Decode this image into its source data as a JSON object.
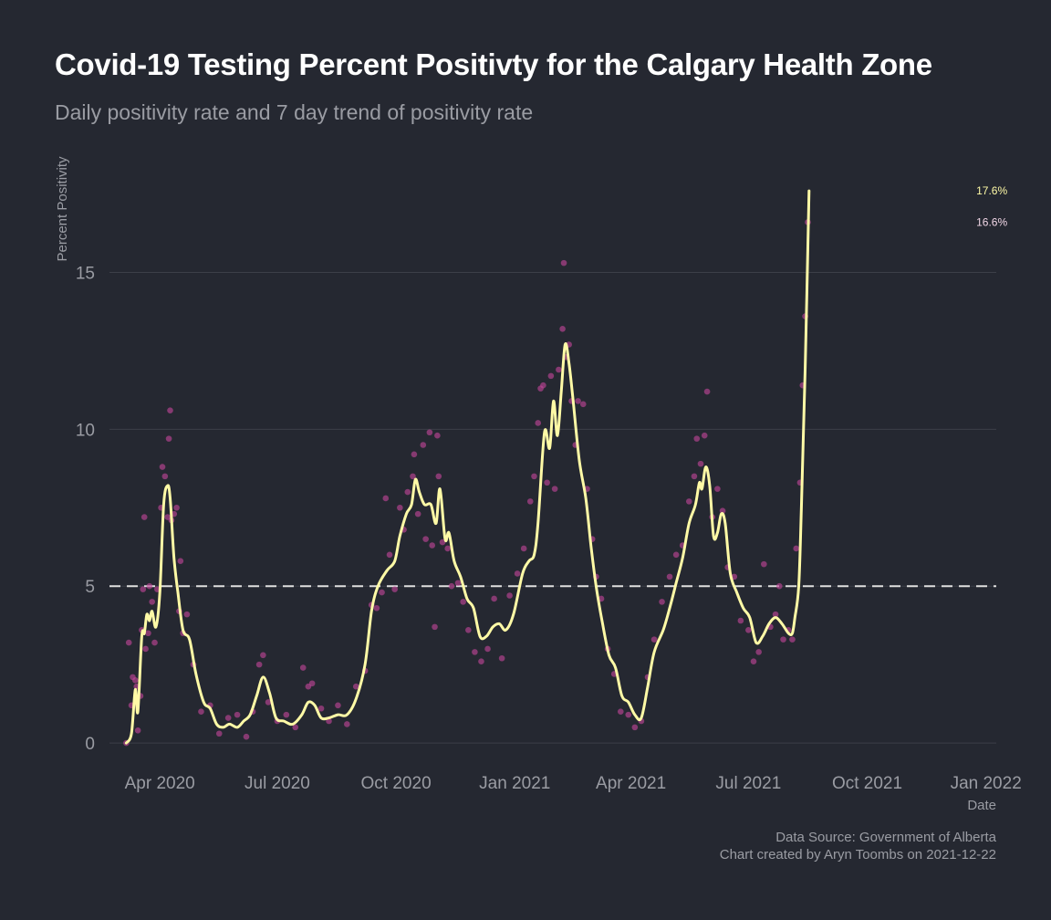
{
  "chart_data": {
    "type": "scatter",
    "title": "Covid-19 Testing Percent Positivty for the Calgary Health Zone",
    "subtitle": "Daily positivity rate and 7 day trend of positivity rate",
    "xlabel": "Date",
    "ylabel": "Percent Positivity",
    "x_ticks": [
      {
        "date": "2020-04-01",
        "label": "Apr 2020"
      },
      {
        "date": "2020-07-01",
        "label": "Jul 2020"
      },
      {
        "date": "2020-10-01",
        "label": "Oct 2020"
      },
      {
        "date": "2021-01-01",
        "label": "Jan 2021"
      },
      {
        "date": "2021-04-01",
        "label": "Apr 2021"
      },
      {
        "date": "2021-07-01",
        "label": "Jul 2021"
      },
      {
        "date": "2021-10-01",
        "label": "Oct 2021"
      },
      {
        "date": "2022-01-01",
        "label": "Jan 2022"
      }
    ],
    "y_ticks": [
      0,
      5,
      10,
      15
    ],
    "xlim": [
      "2020-02-22",
      "2022-01-09"
    ],
    "ylim": [
      -0.9,
      18.3
    ],
    "grid": "horizontal",
    "reference_line": {
      "y": 5,
      "style": "dashed",
      "color": "#e0e0e0"
    },
    "colors": {
      "points": "#c2459a",
      "trend": "#fffaa6",
      "background": "#252831"
    },
    "series": [
      {
        "kind": "7-day trend",
        "style": "line",
        "points": [
          [
            "2020-03-06",
            0
          ],
          [
            "2020-03-10",
            0.3
          ],
          [
            "2020-03-13",
            1.7
          ],
          [
            "2020-03-15",
            1.0
          ],
          [
            "2020-03-18",
            3.4
          ],
          [
            "2020-03-20",
            3.5
          ],
          [
            "2020-03-22",
            4.1
          ],
          [
            "2020-03-24",
            3.9
          ],
          [
            "2020-03-26",
            4.2
          ],
          [
            "2020-03-29",
            3.7
          ],
          [
            "2020-04-01",
            4.8
          ],
          [
            "2020-04-04",
            7.6
          ],
          [
            "2020-04-07",
            8.2
          ],
          [
            "2020-04-09",
            7.8
          ],
          [
            "2020-04-12",
            5.9
          ],
          [
            "2020-04-15",
            4.8
          ],
          [
            "2020-04-19",
            3.6
          ],
          [
            "2020-04-24",
            3.3
          ],
          [
            "2020-04-29",
            2.2
          ],
          [
            "2020-05-05",
            1.3
          ],
          [
            "2020-05-10",
            1.1
          ],
          [
            "2020-05-15",
            0.6
          ],
          [
            "2020-05-20",
            0.5
          ],
          [
            "2020-05-25",
            0.6
          ],
          [
            "2020-05-31",
            0.5
          ],
          [
            "2020-06-05",
            0.7
          ],
          [
            "2020-06-10",
            0.9
          ],
          [
            "2020-06-15",
            1.5
          ],
          [
            "2020-06-20",
            2.1
          ],
          [
            "2020-06-25",
            1.6
          ],
          [
            "2020-06-30",
            0.8
          ],
          [
            "2020-07-06",
            0.7
          ],
          [
            "2020-07-13",
            0.6
          ],
          [
            "2020-07-20",
            0.9
          ],
          [
            "2020-07-25",
            1.3
          ],
          [
            "2020-07-30",
            1.2
          ],
          [
            "2020-08-04",
            0.8
          ],
          [
            "2020-08-10",
            0.8
          ],
          [
            "2020-08-17",
            0.9
          ],
          [
            "2020-08-24",
            0.9
          ],
          [
            "2020-08-31",
            1.4
          ],
          [
            "2020-09-07",
            2.5
          ],
          [
            "2020-09-12",
            4.2
          ],
          [
            "2020-09-17",
            5.0
          ],
          [
            "2020-09-24",
            5.5
          ],
          [
            "2020-09-30",
            5.8
          ],
          [
            "2020-10-04",
            6.6
          ],
          [
            "2020-10-09",
            7.3
          ],
          [
            "2020-10-13",
            7.6
          ],
          [
            "2020-10-16",
            8.4
          ],
          [
            "2020-10-19",
            8.0
          ],
          [
            "2020-10-23",
            7.6
          ],
          [
            "2020-10-28",
            7.6
          ],
          [
            "2020-11-01",
            7.0
          ],
          [
            "2020-11-04",
            8.1
          ],
          [
            "2020-11-08",
            6.5
          ],
          [
            "2020-11-11",
            6.7
          ],
          [
            "2020-11-15",
            5.8
          ],
          [
            "2020-11-20",
            5.3
          ],
          [
            "2020-11-25",
            4.6
          ],
          [
            "2020-11-30",
            4.3
          ],
          [
            "2020-12-05",
            3.4
          ],
          [
            "2020-12-10",
            3.4
          ],
          [
            "2020-12-15",
            3.7
          ],
          [
            "2020-12-20",
            3.8
          ],
          [
            "2020-12-25",
            3.6
          ],
          [
            "2020-12-31",
            4.1
          ],
          [
            "2021-01-07",
            5.4
          ],
          [
            "2021-01-12",
            5.8
          ],
          [
            "2021-01-16",
            6.0
          ],
          [
            "2021-01-19",
            7.0
          ],
          [
            "2021-01-24",
            9.9
          ],
          [
            "2021-01-28",
            9.4
          ],
          [
            "2021-01-31",
            10.9
          ],
          [
            "2021-02-03",
            9.8
          ],
          [
            "2021-02-06",
            11.2
          ],
          [
            "2021-02-09",
            12.7
          ],
          [
            "2021-02-12",
            12.1
          ],
          [
            "2021-02-15",
            11.0
          ],
          [
            "2021-02-20",
            9.0
          ],
          [
            "2021-02-25",
            7.8
          ],
          [
            "2021-03-01",
            6.3
          ],
          [
            "2021-03-05",
            5.0
          ],
          [
            "2021-03-10",
            3.8
          ],
          [
            "2021-03-15",
            2.8
          ],
          [
            "2021-03-20",
            2.4
          ],
          [
            "2021-03-25",
            1.5
          ],
          [
            "2021-03-30",
            1.3
          ],
          [
            "2021-04-04",
            0.9
          ],
          [
            "2021-04-09",
            0.8
          ],
          [
            "2021-04-14",
            1.8
          ],
          [
            "2021-04-19",
            2.9
          ],
          [
            "2021-04-26",
            3.6
          ],
          [
            "2021-05-01",
            4.3
          ],
          [
            "2021-05-06",
            5.1
          ],
          [
            "2021-05-11",
            5.9
          ],
          [
            "2021-05-16",
            7.0
          ],
          [
            "2021-05-21",
            7.6
          ],
          [
            "2021-05-24",
            8.3
          ],
          [
            "2021-05-26",
            8.1
          ],
          [
            "2021-05-29",
            8.8
          ],
          [
            "2021-06-01",
            8.2
          ],
          [
            "2021-06-04",
            6.6
          ],
          [
            "2021-06-07",
            6.7
          ],
          [
            "2021-06-10",
            7.3
          ],
          [
            "2021-06-13",
            7.0
          ],
          [
            "2021-06-17",
            5.4
          ],
          [
            "2021-06-22",
            4.8
          ],
          [
            "2021-06-27",
            4.3
          ],
          [
            "2021-07-02",
            4.0
          ],
          [
            "2021-07-07",
            3.2
          ],
          [
            "2021-07-12",
            3.4
          ],
          [
            "2021-07-17",
            3.8
          ],
          [
            "2021-07-22",
            4.0
          ],
          [
            "2021-07-27",
            3.8
          ],
          [
            "2021-08-01",
            3.5
          ],
          [
            "2021-08-04",
            3.5
          ],
          [
            "2021-08-06",
            4.0
          ],
          [
            "2021-08-09",
            5.0
          ],
          [
            "2021-08-11",
            7.5
          ],
          [
            "2021-08-14",
            12.0
          ],
          [
            "2021-08-17",
            17.6
          ]
        ]
      },
      {
        "kind": "daily",
        "style": "points",
        "points": [
          [
            "2020-03-06",
            0
          ],
          [
            "2020-03-08",
            3.2
          ],
          [
            "2020-03-10",
            1.2
          ],
          [
            "2020-03-11",
            2.1
          ],
          [
            "2020-03-13",
            2.0
          ],
          [
            "2020-03-14",
            1.8
          ],
          [
            "2020-03-15",
            0.4
          ],
          [
            "2020-03-17",
            1.5
          ],
          [
            "2020-03-18",
            3.6
          ],
          [
            "2020-03-19",
            4.9
          ],
          [
            "2020-03-20",
            7.2
          ],
          [
            "2020-03-21",
            3.0
          ],
          [
            "2020-03-23",
            3.5
          ],
          [
            "2020-03-24",
            5.0
          ],
          [
            "2020-03-26",
            4.5
          ],
          [
            "2020-03-28",
            3.2
          ],
          [
            "2020-03-30",
            4.9
          ],
          [
            "2020-04-02",
            7.5
          ],
          [
            "2020-04-03",
            8.8
          ],
          [
            "2020-04-05",
            8.5
          ],
          [
            "2020-04-07",
            7.2
          ],
          [
            "2020-04-08",
            9.7
          ],
          [
            "2020-04-09",
            10.6
          ],
          [
            "2020-04-10",
            7.1
          ],
          [
            "2020-04-12",
            7.3
          ],
          [
            "2020-04-14",
            7.5
          ],
          [
            "2020-04-16",
            4.2
          ],
          [
            "2020-04-17",
            5.8
          ],
          [
            "2020-04-19",
            3.5
          ],
          [
            "2020-04-22",
            4.1
          ],
          [
            "2020-04-27",
            2.5
          ],
          [
            "2020-05-03",
            1.0
          ],
          [
            "2020-05-10",
            1.2
          ],
          [
            "2020-05-17",
            0.3
          ],
          [
            "2020-05-24",
            0.8
          ],
          [
            "2020-05-31",
            0.9
          ],
          [
            "2020-06-07",
            0.2
          ],
          [
            "2020-06-12",
            1.0
          ],
          [
            "2020-06-17",
            2.5
          ],
          [
            "2020-06-20",
            2.8
          ],
          [
            "2020-06-24",
            1.3
          ],
          [
            "2020-07-01",
            0.7
          ],
          [
            "2020-07-08",
            0.9
          ],
          [
            "2020-07-15",
            0.5
          ],
          [
            "2020-07-21",
            2.4
          ],
          [
            "2020-07-25",
            1.8
          ],
          [
            "2020-07-28",
            1.9
          ],
          [
            "2020-08-04",
            1.1
          ],
          [
            "2020-08-10",
            0.7
          ],
          [
            "2020-08-17",
            1.2
          ],
          [
            "2020-08-24",
            0.6
          ],
          [
            "2020-08-31",
            1.8
          ],
          [
            "2020-09-07",
            2.3
          ],
          [
            "2020-09-12",
            4.4
          ],
          [
            "2020-09-16",
            4.3
          ],
          [
            "2020-09-20",
            4.8
          ],
          [
            "2020-09-23",
            7.8
          ],
          [
            "2020-09-26",
            6.0
          ],
          [
            "2020-09-30",
            4.9
          ],
          [
            "2020-10-04",
            7.5
          ],
          [
            "2020-10-07",
            6.8
          ],
          [
            "2020-10-10",
            8.0
          ],
          [
            "2020-10-14",
            8.5
          ],
          [
            "2020-10-15",
            9.2
          ],
          [
            "2020-10-18",
            7.3
          ],
          [
            "2020-10-22",
            9.5
          ],
          [
            "2020-10-24",
            6.5
          ],
          [
            "2020-10-27",
            9.9
          ],
          [
            "2020-10-29",
            6.3
          ],
          [
            "2020-10-31",
            3.7
          ],
          [
            "2020-11-02",
            9.8
          ],
          [
            "2020-11-03",
            8.5
          ],
          [
            "2020-11-06",
            6.4
          ],
          [
            "2020-11-10",
            6.2
          ],
          [
            "2020-11-13",
            5.0
          ],
          [
            "2020-11-18",
            5.1
          ],
          [
            "2020-11-22",
            4.5
          ],
          [
            "2020-11-26",
            3.6
          ],
          [
            "2020-12-01",
            2.9
          ],
          [
            "2020-12-06",
            2.6
          ],
          [
            "2020-12-11",
            3.0
          ],
          [
            "2020-12-16",
            4.6
          ],
          [
            "2020-12-22",
            2.7
          ],
          [
            "2020-12-28",
            4.7
          ],
          [
            "2021-01-03",
            5.4
          ],
          [
            "2021-01-08",
            6.2
          ],
          [
            "2021-01-13",
            7.7
          ],
          [
            "2021-01-16",
            8.5
          ],
          [
            "2021-01-19",
            10.2
          ],
          [
            "2021-01-21",
            11.3
          ],
          [
            "2021-01-23",
            11.4
          ],
          [
            "2021-01-26",
            8.3
          ],
          [
            "2021-01-29",
            11.7
          ],
          [
            "2021-02-01",
            8.1
          ],
          [
            "2021-02-04",
            11.9
          ],
          [
            "2021-02-07",
            13.2
          ],
          [
            "2021-02-08",
            15.3
          ],
          [
            "2021-02-10",
            12.3
          ],
          [
            "2021-02-12",
            12.7
          ],
          [
            "2021-02-14",
            10.9
          ],
          [
            "2021-02-17",
            9.5
          ],
          [
            "2021-02-19",
            10.9
          ],
          [
            "2021-02-23",
            10.8
          ],
          [
            "2021-02-26",
            8.1
          ],
          [
            "2021-03-02",
            6.5
          ],
          [
            "2021-03-05",
            5.3
          ],
          [
            "2021-03-09",
            4.6
          ],
          [
            "2021-03-14",
            3.0
          ],
          [
            "2021-03-19",
            2.2
          ],
          [
            "2021-03-24",
            1.0
          ],
          [
            "2021-03-30",
            0.9
          ],
          [
            "2021-04-04",
            0.5
          ],
          [
            "2021-04-09",
            0.7
          ],
          [
            "2021-04-14",
            2.1
          ],
          [
            "2021-04-19",
            3.3
          ],
          [
            "2021-04-25",
            4.5
          ],
          [
            "2021-05-01",
            5.3
          ],
          [
            "2021-05-06",
            6.0
          ],
          [
            "2021-05-11",
            6.3
          ],
          [
            "2021-05-16",
            7.7
          ],
          [
            "2021-05-20",
            8.5
          ],
          [
            "2021-05-22",
            9.7
          ],
          [
            "2021-05-25",
            8.9
          ],
          [
            "2021-05-28",
            9.8
          ],
          [
            "2021-05-30",
            11.2
          ],
          [
            "2021-06-03",
            7.2
          ],
          [
            "2021-06-07",
            8.1
          ],
          [
            "2021-06-11",
            7.4
          ],
          [
            "2021-06-15",
            5.6
          ],
          [
            "2021-06-20",
            5.3
          ],
          [
            "2021-06-25",
            3.9
          ],
          [
            "2021-07-01",
            3.6
          ],
          [
            "2021-07-05",
            2.6
          ],
          [
            "2021-07-09",
            2.9
          ],
          [
            "2021-07-13",
            5.7
          ],
          [
            "2021-07-18",
            3.7
          ],
          [
            "2021-07-22",
            4.1
          ],
          [
            "2021-07-25",
            5.0
          ],
          [
            "2021-07-28",
            3.3
          ],
          [
            "2021-08-01",
            3.6
          ],
          [
            "2021-08-04",
            3.3
          ],
          [
            "2021-08-07",
            6.2
          ],
          [
            "2021-08-10",
            8.3
          ],
          [
            "2021-08-12",
            11.4
          ],
          [
            "2021-08-14",
            13.6
          ],
          [
            "2021-08-16",
            16.6
          ]
        ]
      }
    ],
    "end_labels": [
      {
        "text": "17.6%",
        "x": "2021-12-21",
        "y": 17.6,
        "color": "#fffaa6"
      },
      {
        "text": "16.6%",
        "x": "2021-12-21",
        "y": 16.6,
        "color": "#f1d6e6"
      }
    ],
    "caption": {
      "line1": "Data Source: Government of Alberta",
      "line2": "Chart created by Aryn Toombs on 2021-12-22"
    }
  }
}
